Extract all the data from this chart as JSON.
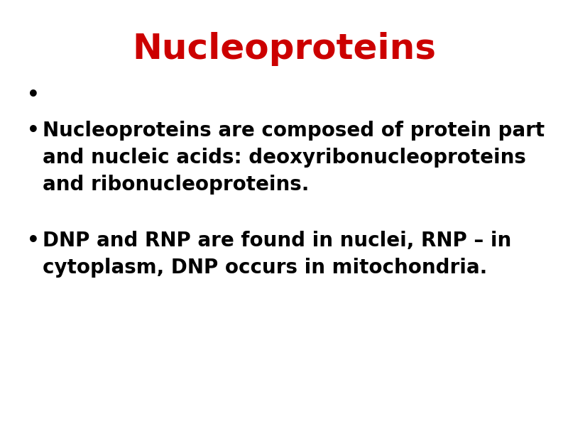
{
  "title": "Nucleoproteins",
  "title_color": "#CC0000",
  "title_fontsize": 36,
  "background_color": "#FFFFFF",
  "bullet_color": "#000000",
  "bullet_fontsize": 20,
  "bullet1_text": "",
  "bullet2_text": "Nucleoproteins are composed of protein part\nand nucleic acids: deoxyribonucleoproteins\nand ribonucleoproteins.",
  "bullet3_text": "DNP and RNP are found in nuclei, RNP – in\ncytoplasm, DNP occurs in mitochondria.",
  "fig_width": 8.0,
  "fig_height": 6.0,
  "fig_dpi": 100
}
